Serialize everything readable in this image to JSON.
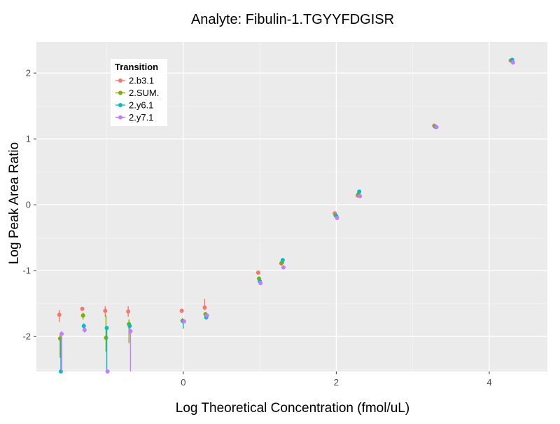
{
  "chart_data": {
    "type": "scatter",
    "title": "Analyte: Fibulin-1.TGYYFDGISR",
    "xlabel": "Log Theoretical Concentration (fmol/uL)",
    "ylabel": "Log Peak Area Ratio",
    "xlim": [
      -1.92,
      4.76
    ],
    "ylim": [
      -2.53,
      2.47
    ],
    "x_ticks": [
      0,
      2,
      4
    ],
    "y_ticks": [
      -2,
      -1,
      0,
      1,
      2
    ],
    "grid": true,
    "legend": {
      "title": "Transition",
      "placement": "top-left"
    },
    "colors": {
      "panel": "#ebebeb",
      "grid": "#ffffff",
      "text": "#4d4d4d"
    },
    "series": [
      {
        "name": "2.b3.1",
        "color": "#F8766D",
        "points": [
          {
            "x": -1.62,
            "y": -1.67,
            "lo": -1.78,
            "hi": -1.6
          },
          {
            "x": -1.32,
            "y": -1.58,
            "lo": -1.61,
            "hi": -1.55
          },
          {
            "x": -1.02,
            "y": -1.61,
            "lo": -1.7,
            "hi": -1.54
          },
          {
            "x": -0.72,
            "y": -1.62,
            "lo": -1.7,
            "hi": -1.54
          },
          {
            "x": -0.02,
            "y": -1.61,
            "lo": -1.63,
            "hi": -1.59
          },
          {
            "x": 0.28,
            "y": -1.56,
            "lo": -1.6,
            "hi": -1.43
          },
          {
            "x": 0.98,
            "y": -1.03,
            "lo": -1.04,
            "hi": -1.02
          },
          {
            "x": 1.28,
            "y": -0.89,
            "lo": -0.9,
            "hi": -0.88
          },
          {
            "x": 1.98,
            "y": -0.13,
            "lo": -0.14,
            "hi": -0.12
          },
          {
            "x": 2.28,
            "y": 0.14,
            "lo": 0.13,
            "hi": 0.15
          },
          {
            "x": 3.28,
            "y": 1.2,
            "lo": 1.19,
            "hi": 1.21
          },
          {
            "x": 4.28,
            "y": 2.19,
            "lo": 2.18,
            "hi": 2.2
          }
        ]
      },
      {
        "name": "2.SUM.",
        "color": "#7CAE00",
        "points": [
          {
            "x": -1.61,
            "y": -2.03,
            "lo": -2.32,
            "hi": -1.95
          },
          {
            "x": -1.31,
            "y": -1.68,
            "lo": -1.74,
            "hi": -1.64
          },
          {
            "x": -1.01,
            "y": -2.02,
            "lo": -2.23,
            "hi": -1.68
          },
          {
            "x": -0.71,
            "y": -1.81,
            "lo": -2.1,
            "hi": -1.74
          },
          {
            "x": -0.01,
            "y": -1.76,
            "lo": -1.8,
            "hi": -1.72
          },
          {
            "x": 0.29,
            "y": -1.66,
            "lo": -1.68,
            "hi": -1.63
          },
          {
            "x": 0.99,
            "y": -1.12,
            "lo": -1.14,
            "hi": -1.09
          },
          {
            "x": 1.29,
            "y": -0.88,
            "lo": -0.9,
            "hi": -0.85
          },
          {
            "x": 1.99,
            "y": -0.16,
            "lo": -0.17,
            "hi": -0.15
          },
          {
            "x": 2.29,
            "y": 0.16,
            "lo": 0.14,
            "hi": 0.18
          },
          {
            "x": 3.29,
            "y": 1.19,
            "lo": 1.18,
            "hi": 1.2
          },
          {
            "x": 4.29,
            "y": 2.19,
            "lo": 2.18,
            "hi": 2.2
          }
        ]
      },
      {
        "name": "2.y6.1",
        "color": "#00BFC4",
        "points": [
          {
            "x": -1.6,
            "y": -2.53,
            "lo": -2.53,
            "hi": -2.03
          },
          {
            "x": -1.3,
            "y": -1.84,
            "lo": -1.88,
            "hi": -1.8
          },
          {
            "x": -1.0,
            "y": -1.87,
            "lo": -2.53,
            "hi": -1.84
          },
          {
            "x": -0.7,
            "y": -1.84,
            "lo": -1.88,
            "hi": -1.8
          },
          {
            "x": 0.0,
            "y": -1.77,
            "lo": -1.88,
            "hi": -1.74
          },
          {
            "x": 0.3,
            "y": -1.71,
            "lo": -1.73,
            "hi": -1.69
          },
          {
            "x": 1.0,
            "y": -1.16,
            "lo": -1.18,
            "hi": -1.14
          },
          {
            "x": 1.3,
            "y": -0.84,
            "lo": -0.87,
            "hi": -0.81
          },
          {
            "x": 2.0,
            "y": -0.17,
            "lo": -0.18,
            "hi": -0.16
          },
          {
            "x": 2.3,
            "y": 0.2,
            "lo": 0.18,
            "hi": 0.22
          },
          {
            "x": 3.3,
            "y": 1.18,
            "lo": 1.17,
            "hi": 1.19
          },
          {
            "x": 4.3,
            "y": 2.2,
            "lo": 2.19,
            "hi": 2.21
          }
        ]
      },
      {
        "name": "2.y7.1",
        "color": "#C77CFF",
        "points": [
          {
            "x": -1.59,
            "y": -1.96,
            "lo": -2.53,
            "hi": -1.92
          },
          {
            "x": -1.29,
            "y": -1.9,
            "lo": -1.94,
            "hi": -1.87
          },
          {
            "x": -0.99,
            "y": -2.53,
            "lo": -2.53,
            "hi": -2.53
          },
          {
            "x": -0.69,
            "y": -1.92,
            "lo": -2.53,
            "hi": -1.88
          },
          {
            "x": 0.01,
            "y": -1.77,
            "lo": -1.8,
            "hi": -1.74
          },
          {
            "x": 0.31,
            "y": -1.68,
            "lo": -1.7,
            "hi": -1.66
          },
          {
            "x": 1.01,
            "y": -1.19,
            "lo": -1.21,
            "hi": -1.17
          },
          {
            "x": 1.31,
            "y": -0.95,
            "lo": -0.97,
            "hi": -0.93
          },
          {
            "x": 2.01,
            "y": -0.2,
            "lo": -0.21,
            "hi": -0.19
          },
          {
            "x": 2.31,
            "y": 0.13,
            "lo": 0.12,
            "hi": 0.14
          },
          {
            "x": 3.31,
            "y": 1.18,
            "lo": 1.17,
            "hi": 1.19
          },
          {
            "x": 4.31,
            "y": 2.16,
            "lo": 2.15,
            "hi": 2.17
          }
        ]
      }
    ]
  }
}
